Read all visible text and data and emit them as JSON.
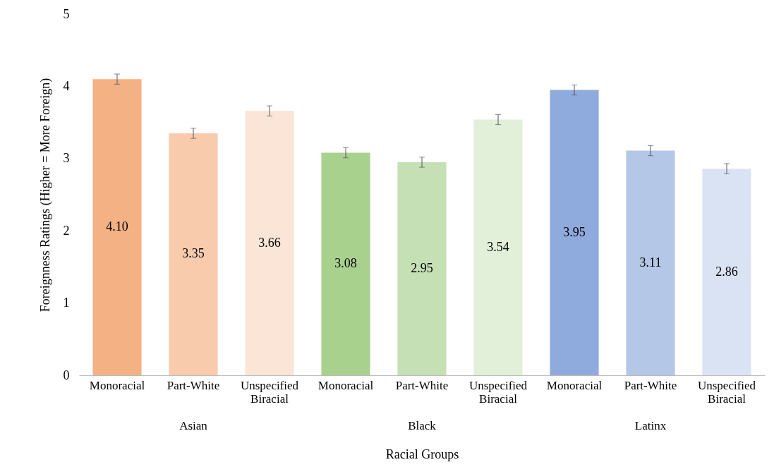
{
  "chart_data": {
    "type": "bar",
    "categories": [
      "Monoracial",
      "Part-White",
      "Unspecified Biracial",
      "Monoracial",
      "Part-White",
      "Unspecified Biracial",
      "Monoracial",
      "Part-White",
      "Unspecified Biracial"
    ],
    "values": [
      4.1,
      3.35,
      3.66,
      3.08,
      2.95,
      3.54,
      3.95,
      3.11,
      2.86
    ],
    "colors": [
      "#f4b183",
      "#f8cbad",
      "#fbe5d6",
      "#a9d18e",
      "#c5e0b4",
      "#e2f0d9",
      "#8faadc",
      "#b4c7e7",
      "#dae3f3"
    ],
    "errors": [
      0.07,
      0.07,
      0.07,
      0.07,
      0.07,
      0.07,
      0.07,
      0.07,
      0.07
    ],
    "value_labels": [
      "4.10",
      "3.35",
      "3.66",
      "3.08",
      "2.95",
      "3.54",
      "3.95",
      "3.11",
      "2.86"
    ],
    "xlabel": "Racial Groups",
    "ylabel": "Foreignness Ratings (Higher = More Foreign)",
    "annotations": [
      "Asian",
      "Black",
      "Latinx"
    ],
    "ylim": [
      0,
      5
    ],
    "yticks": [
      0,
      1,
      2,
      3,
      4,
      5
    ],
    "grid": false,
    "legend": false
  }
}
